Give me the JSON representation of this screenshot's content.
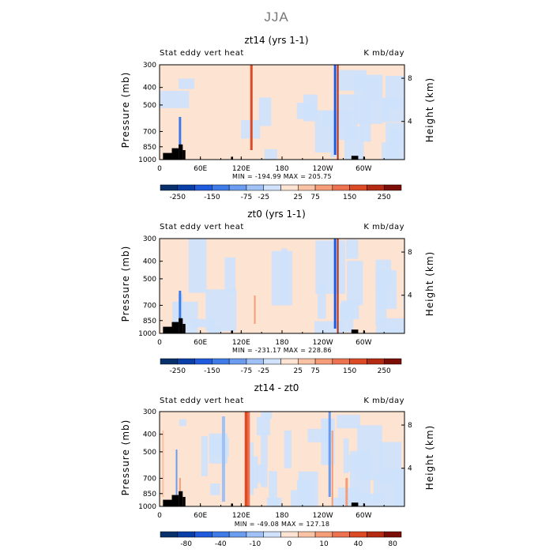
{
  "page": {
    "title": "JJA"
  },
  "colors": {
    "scale": [
      "#08306b",
      "#0b3fa8",
      "#1f5bdc",
      "#3f7be8",
      "#6a9cf0",
      "#9fc1f5",
      "#cfe1fb",
      "#fde3d2",
      "#f9c2a4",
      "#f49d78",
      "#ec7250",
      "#dc4a26",
      "#b52a12",
      "#7c0e07"
    ]
  },
  "chart_data": [
    {
      "type": "heatmap",
      "title": "zt14 (yrs 1-1)",
      "left_label": "Stat eddy vert heat",
      "units": "K mb/day",
      "ylabel": "Pressure (mb)",
      "y2label": "Height (km)",
      "minmax": "MIN = -194.99   MAX = 205.75",
      "x_ticks": [
        "0",
        "60E",
        "120E",
        "180",
        "120W",
        "60W"
      ],
      "y_ticks": [
        "300",
        "400",
        "500",
        "700",
        "850",
        "1000"
      ],
      "y2_ticks": [
        "8",
        "4"
      ],
      "colorbar_labels": [
        "-250",
        "-150",
        "-75",
        "-25",
        "25",
        "75",
        "150",
        "250"
      ],
      "ylim": [
        1000,
        300
      ],
      "xlim": [
        0,
        360
      ]
    },
    {
      "type": "heatmap",
      "title": "zt0 (yrs 1-1)",
      "left_label": "Stat eddy vert heat",
      "units": "K mb/day",
      "ylabel": "Pressure (mb)",
      "y2label": "Height (km)",
      "minmax": "MIN = -231.17   MAX = 228.86",
      "x_ticks": [
        "0",
        "60E",
        "120E",
        "180",
        "120W",
        "60W"
      ],
      "y_ticks": [
        "300",
        "400",
        "500",
        "700",
        "850",
        "1000"
      ],
      "y2_ticks": [
        "8",
        "4"
      ],
      "colorbar_labels": [
        "-250",
        "-150",
        "-75",
        "-25",
        "25",
        "75",
        "150",
        "250"
      ],
      "ylim": [
        1000,
        300
      ],
      "xlim": [
        0,
        360
      ]
    },
    {
      "type": "heatmap",
      "title": "zt14 - zt0",
      "left_label": "Stat eddy vert heat",
      "units": "K mb/day",
      "ylabel": "Pressure (mb)",
      "y2label": "Height (km)",
      "minmax": "MIN = -49.08   MAX = 127.18",
      "x_ticks": [
        "0",
        "60E",
        "120E",
        "180",
        "120W",
        "60W"
      ],
      "y_ticks": [
        "300",
        "400",
        "500",
        "700",
        "850",
        "1000"
      ],
      "y2_ticks": [
        "8",
        "4"
      ],
      "colorbar_labels": [
        "-80",
        "-40",
        "-10",
        "0",
        "10",
        "40",
        "80"
      ],
      "ylim": [
        1000,
        300
      ],
      "xlim": [
        0,
        360
      ]
    }
  ]
}
